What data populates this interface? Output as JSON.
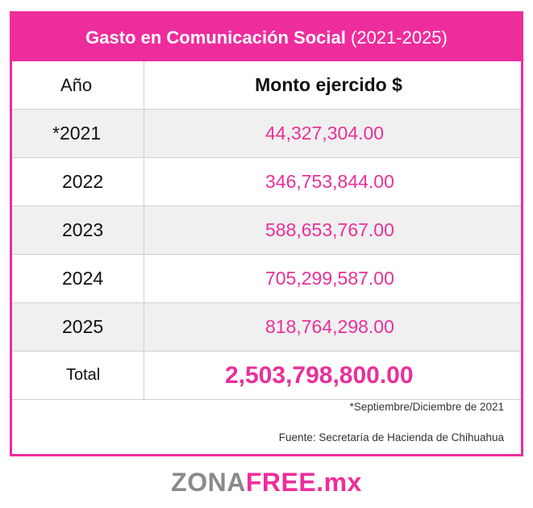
{
  "title": {
    "bold": "Gasto en Comunicación Social",
    "regular": "(2021-2025)"
  },
  "header": {
    "year_label": "Año",
    "amount_label": "Monto ejercido $"
  },
  "rows": [
    {
      "year": "*2021",
      "amount": "44,327,304.00"
    },
    {
      "year": "2022",
      "amount": "346,753,844.00"
    },
    {
      "year": "2023",
      "amount": "588,653,767.00"
    },
    {
      "year": "2024",
      "amount": "705,299,587.00"
    },
    {
      "year": "2025",
      "amount": "818,764,298.00"
    }
  ],
  "total": {
    "label": "Total",
    "amount": "2,503,798,800.00"
  },
  "notes": {
    "footnote": "*Septiembre/Diciembre de 2021",
    "source": "Fuente: Secretaría de Hacienda de Chihuahua"
  },
  "logo": {
    "part1": "ZONA",
    "part2": "FREE",
    "part3": ".mx"
  },
  "colors": {
    "accent": "#ee2d9c",
    "row_shade": "#f0f0f0"
  }
}
